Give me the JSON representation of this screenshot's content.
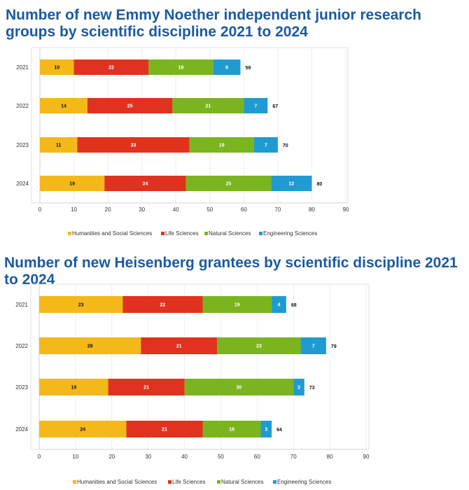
{
  "colors": {
    "humanities": "#f5b819",
    "life": "#e0321e",
    "natural": "#7ab51f",
    "engineering": "#1f9bd1"
  },
  "chart_data": [
    {
      "type": "bar",
      "orientation": "horizontal-stacked",
      "title": "Number of new Emmy Noether independent junior research groups by scientific discipline 2021 to 2024",
      "categories": [
        "2021",
        "2022",
        "2023",
        "2024"
      ],
      "series": [
        {
          "name": "Humanities and Social Sciences",
          "values": [
            10,
            14,
            11,
            19
          ]
        },
        {
          "name": "Life Sciences",
          "values": [
            22,
            25,
            33,
            24
          ]
        },
        {
          "name": "Natural Sciences",
          "values": [
            19,
            21,
            19,
            25
          ]
        },
        {
          "name": "Engineering Sciences",
          "values": [
            8,
            7,
            7,
            12
          ]
        }
      ],
      "totals": [
        59,
        67,
        70,
        80
      ],
      "xlim": [
        0,
        90
      ],
      "xticks": [
        0,
        10,
        20,
        30,
        40,
        50,
        60,
        70,
        80,
        90
      ],
      "grid": true,
      "legend": "bottom"
    },
    {
      "type": "bar",
      "orientation": "horizontal-stacked",
      "title": "Number of new Heisenberg grantees by scientific discipline 2021 to 2024",
      "categories": [
        "2021",
        "2022",
        "2023",
        "2024"
      ],
      "series": [
        {
          "name": "Humanities and Social Sciences",
          "values": [
            23,
            28,
            19,
            24
          ]
        },
        {
          "name": "Life Sciences",
          "values": [
            22,
            21,
            21,
            21
          ]
        },
        {
          "name": "Natural Sciences",
          "values": [
            19,
            23,
            30,
            16
          ]
        },
        {
          "name": "Engineering Sciences",
          "values": [
            4,
            7,
            3,
            3
          ]
        }
      ],
      "totals": [
        68,
        79,
        73,
        64
      ],
      "xlim": [
        0,
        90
      ],
      "xticks": [
        0,
        10,
        20,
        30,
        40,
        50,
        60,
        70,
        80,
        90
      ],
      "grid": true,
      "legend": "bottom"
    }
  ]
}
